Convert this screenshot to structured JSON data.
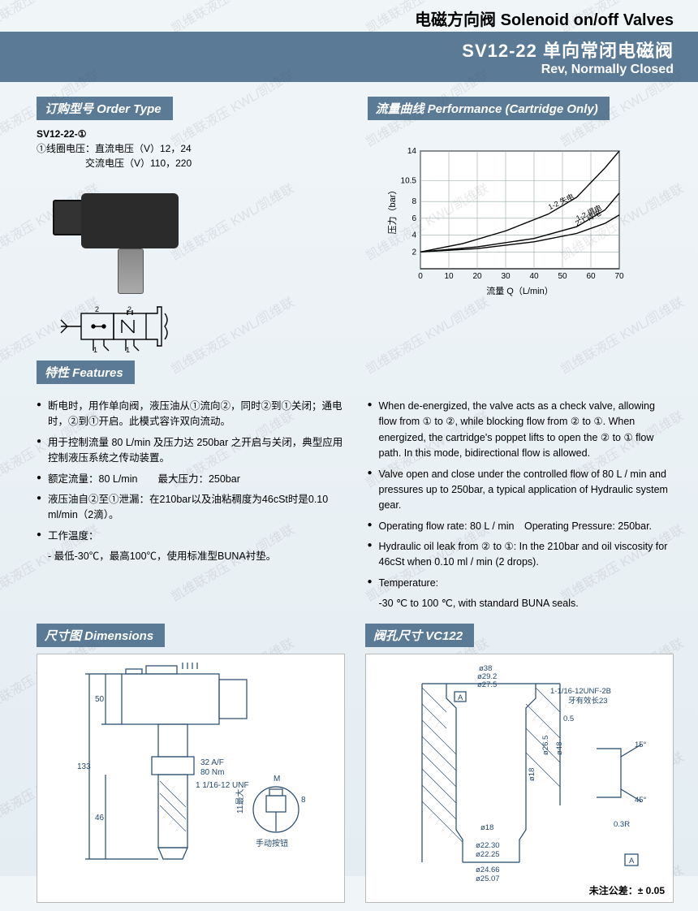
{
  "watermark_text": "凯维联液压  KWL/凯维联",
  "header": {
    "top_line": "电磁方向阀 Solenoid on/off Valves",
    "title_line1": "SV12-22 单向常闭电磁阀",
    "title_line2": "Rev, Normally Closed"
  },
  "order": {
    "label": "订购型号 Order Type",
    "model": "SV12-22-①",
    "row1": "①线圈电压：直流电压（V）12，24",
    "row2": "交流电压（V）110，220"
  },
  "performance": {
    "label": "流量曲线 Performance (Cartridge Only)",
    "chart": {
      "x_label": "流量 Q（L/min）",
      "y_label": "压力（bar）",
      "x_ticks": [
        0,
        10,
        20,
        30,
        40,
        50,
        60,
        70
      ],
      "y_ticks": [
        2,
        4,
        6,
        8,
        10.5,
        14
      ],
      "xlim": [
        0,
        70
      ],
      "ylim": [
        0,
        14
      ],
      "bg": "#ffffff",
      "grid": "#9aa",
      "series": [
        {
          "name": "1-2 失电",
          "points": [
            [
              0,
              2
            ],
            [
              15,
              3
            ],
            [
              30,
              4.5
            ],
            [
              45,
              6.5
            ],
            [
              55,
              8.5
            ],
            [
              65,
              12
            ],
            [
              70,
              14
            ]
          ]
        },
        {
          "name": "1-2 得电",
          "points": [
            [
              0,
              2
            ],
            [
              20,
              2.6
            ],
            [
              40,
              3.6
            ],
            [
              55,
              5
            ],
            [
              65,
              7
            ],
            [
              70,
              9
            ]
          ]
        },
        {
          "name": "2-1 得电",
          "points": [
            [
              0,
              2
            ],
            [
              20,
              2.4
            ],
            [
              40,
              3.2
            ],
            [
              55,
              4.2
            ],
            [
              65,
              5.4
            ],
            [
              70,
              6.4
            ]
          ]
        }
      ],
      "line_color": "#000000",
      "line_width": 1.4,
      "font_size": 10
    }
  },
  "features": {
    "label": "特性 Features",
    "cn": [
      "断电时，用作单向阀，液压油从①流向②，同时②到①关闭；通电时，②到①开启。此模式容许双向流动。",
      "用于控制流量 80 L/min 及压力达 250bar 之开启与关闭，典型应用控制液压系统之传动装置。",
      "额定流量：80 L/min　　最大压力：250bar",
      "液压油自②至①泄漏：在210bar以及油粘稠度为46cSt时是0.10 ml/min（2滴）。",
      "工作温度："
    ],
    "cn_temp": "- 最低-30℃，最高100℃，使用标准型BUNA衬垫。",
    "en": [
      "When de-energized, the valve acts as a check valve, allowing flow from ① to ②, while blocking flow from ② to ①. When energized, the cartridge's poppet lifts to open the ② to ① flow path. In this mode, bidirectional flow is allowed.",
      "Valve open and close under the controlled flow of  80 L / min and pressures up to 250bar, a typical application of Hydraulic system gear.",
      "Operating flow rate: 80 L / min　Operating Pressure: 250bar.",
      "Hydraulic oil leak from ② to ①: In the 210bar and oil viscosity for 46cSt when 0.10 ml / min (2 drops).",
      "Temperature:"
    ],
    "en_temp": "-30 ℃ to 100 ℃, with standard BUNA seals."
  },
  "dimensions": {
    "label": "尺寸图 Dimensions",
    "values": {
      "total_h": "133",
      "top_h": "50",
      "cart_h": "46",
      "hex": "32 A/F",
      "torque": "80 Nm",
      "thread": "1 1/16-12 UNF",
      "knob_note": "手动按钮",
      "m": "M",
      "knob_d": "11最大",
      "knob_h": "8"
    }
  },
  "cavity": {
    "label": "阀孔尺寸 VC122",
    "values": {
      "d38": "ø38",
      "d29_2": "ø29.2",
      "d27_5": "ø27.5",
      "d26_5": "ø26.5",
      "d48": "ø48",
      "d18": "ø18",
      "d18b": "ø18",
      "d22_30": "ø22.30",
      "d22_25": "ø22.25",
      "d24_66": "ø24.66",
      "d25_07": "ø25.07",
      "thread": "1-1/16-12UNF-2B",
      "thread_len": "牙有效长23",
      "r": "0.3R",
      "chamfer45": "45°",
      "chamfer15": "15°",
      "s0_5": "0.5",
      "datum": "A"
    },
    "tolerance": "未注公差：± 0.05"
  },
  "colors": {
    "bar": "#5a7a96",
    "text": "#000000",
    "diagram": "#24486b"
  }
}
